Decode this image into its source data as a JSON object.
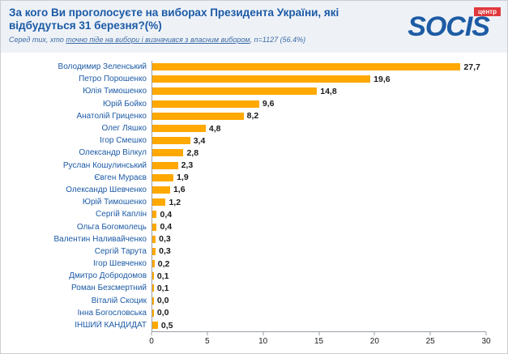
{
  "header": {
    "title": "За кого Ви проголосуєте на виборах Президента України, які відбудуться 31 березня?(%)",
    "subtitle": {
      "part1": "Серед тих, хто ",
      "part2": "точно піде на вибори і визначився з власним вибором",
      "part3": ", n=1127 (56.4%)"
    }
  },
  "logo": {
    "text": "SOCIS",
    "badge": "центр"
  },
  "chart_data": {
    "type": "bar",
    "orientation": "horizontal",
    "title": "За кого Ви проголосуєте на виборах Президента України, які відбудуться 31 березня?(%)",
    "xlabel": "",
    "ylabel": "",
    "xlim": [
      0,
      30
    ],
    "xticks": [
      0,
      5,
      10,
      15,
      20,
      25,
      30
    ],
    "grid": false,
    "legend": "none",
    "bar_color": "#ffa800",
    "categories": [
      "Володимир Зеленський",
      "Петро Порошенко",
      "Юлія Тимошенко",
      "Юрій Бойко",
      "Анатолій Гриценко",
      "Олег Ляшко",
      "Ігор Смешко",
      "Олександр Вілкул",
      "Руслан Кошулинський",
      "Євген Мураєв",
      "Олександр Шевченко",
      "Юрій Тимошенко",
      "Сергій Каплін",
      "Ольга Богомолець",
      "Валентин Наливайченко",
      "Сергій Тарута",
      "Ігор Шевченко",
      "Дмитро Добродомов",
      "Роман Безсмертний",
      "Віталій Скоцик",
      "Інна Богословська",
      "ІНШИЙ КАНДИДАТ"
    ],
    "values": [
      27.7,
      19.6,
      14.8,
      9.6,
      8.2,
      4.8,
      3.4,
      2.8,
      2.3,
      1.9,
      1.6,
      1.2,
      0.4,
      0.4,
      0.3,
      0.3,
      0.2,
      0.1,
      0.1,
      0.0,
      0.0,
      0.5
    ],
    "value_labels": [
      "27,7",
      "19,6",
      "14,8",
      "9,6",
      "8,2",
      "4,8",
      "3,4",
      "2,8",
      "2,3",
      "1,9",
      "1,6",
      "1,2",
      "0,4",
      "0,4",
      "0,3",
      "0,3",
      "0,2",
      "0,1",
      "0,1",
      "0,0",
      "0,0",
      "0,5"
    ]
  }
}
